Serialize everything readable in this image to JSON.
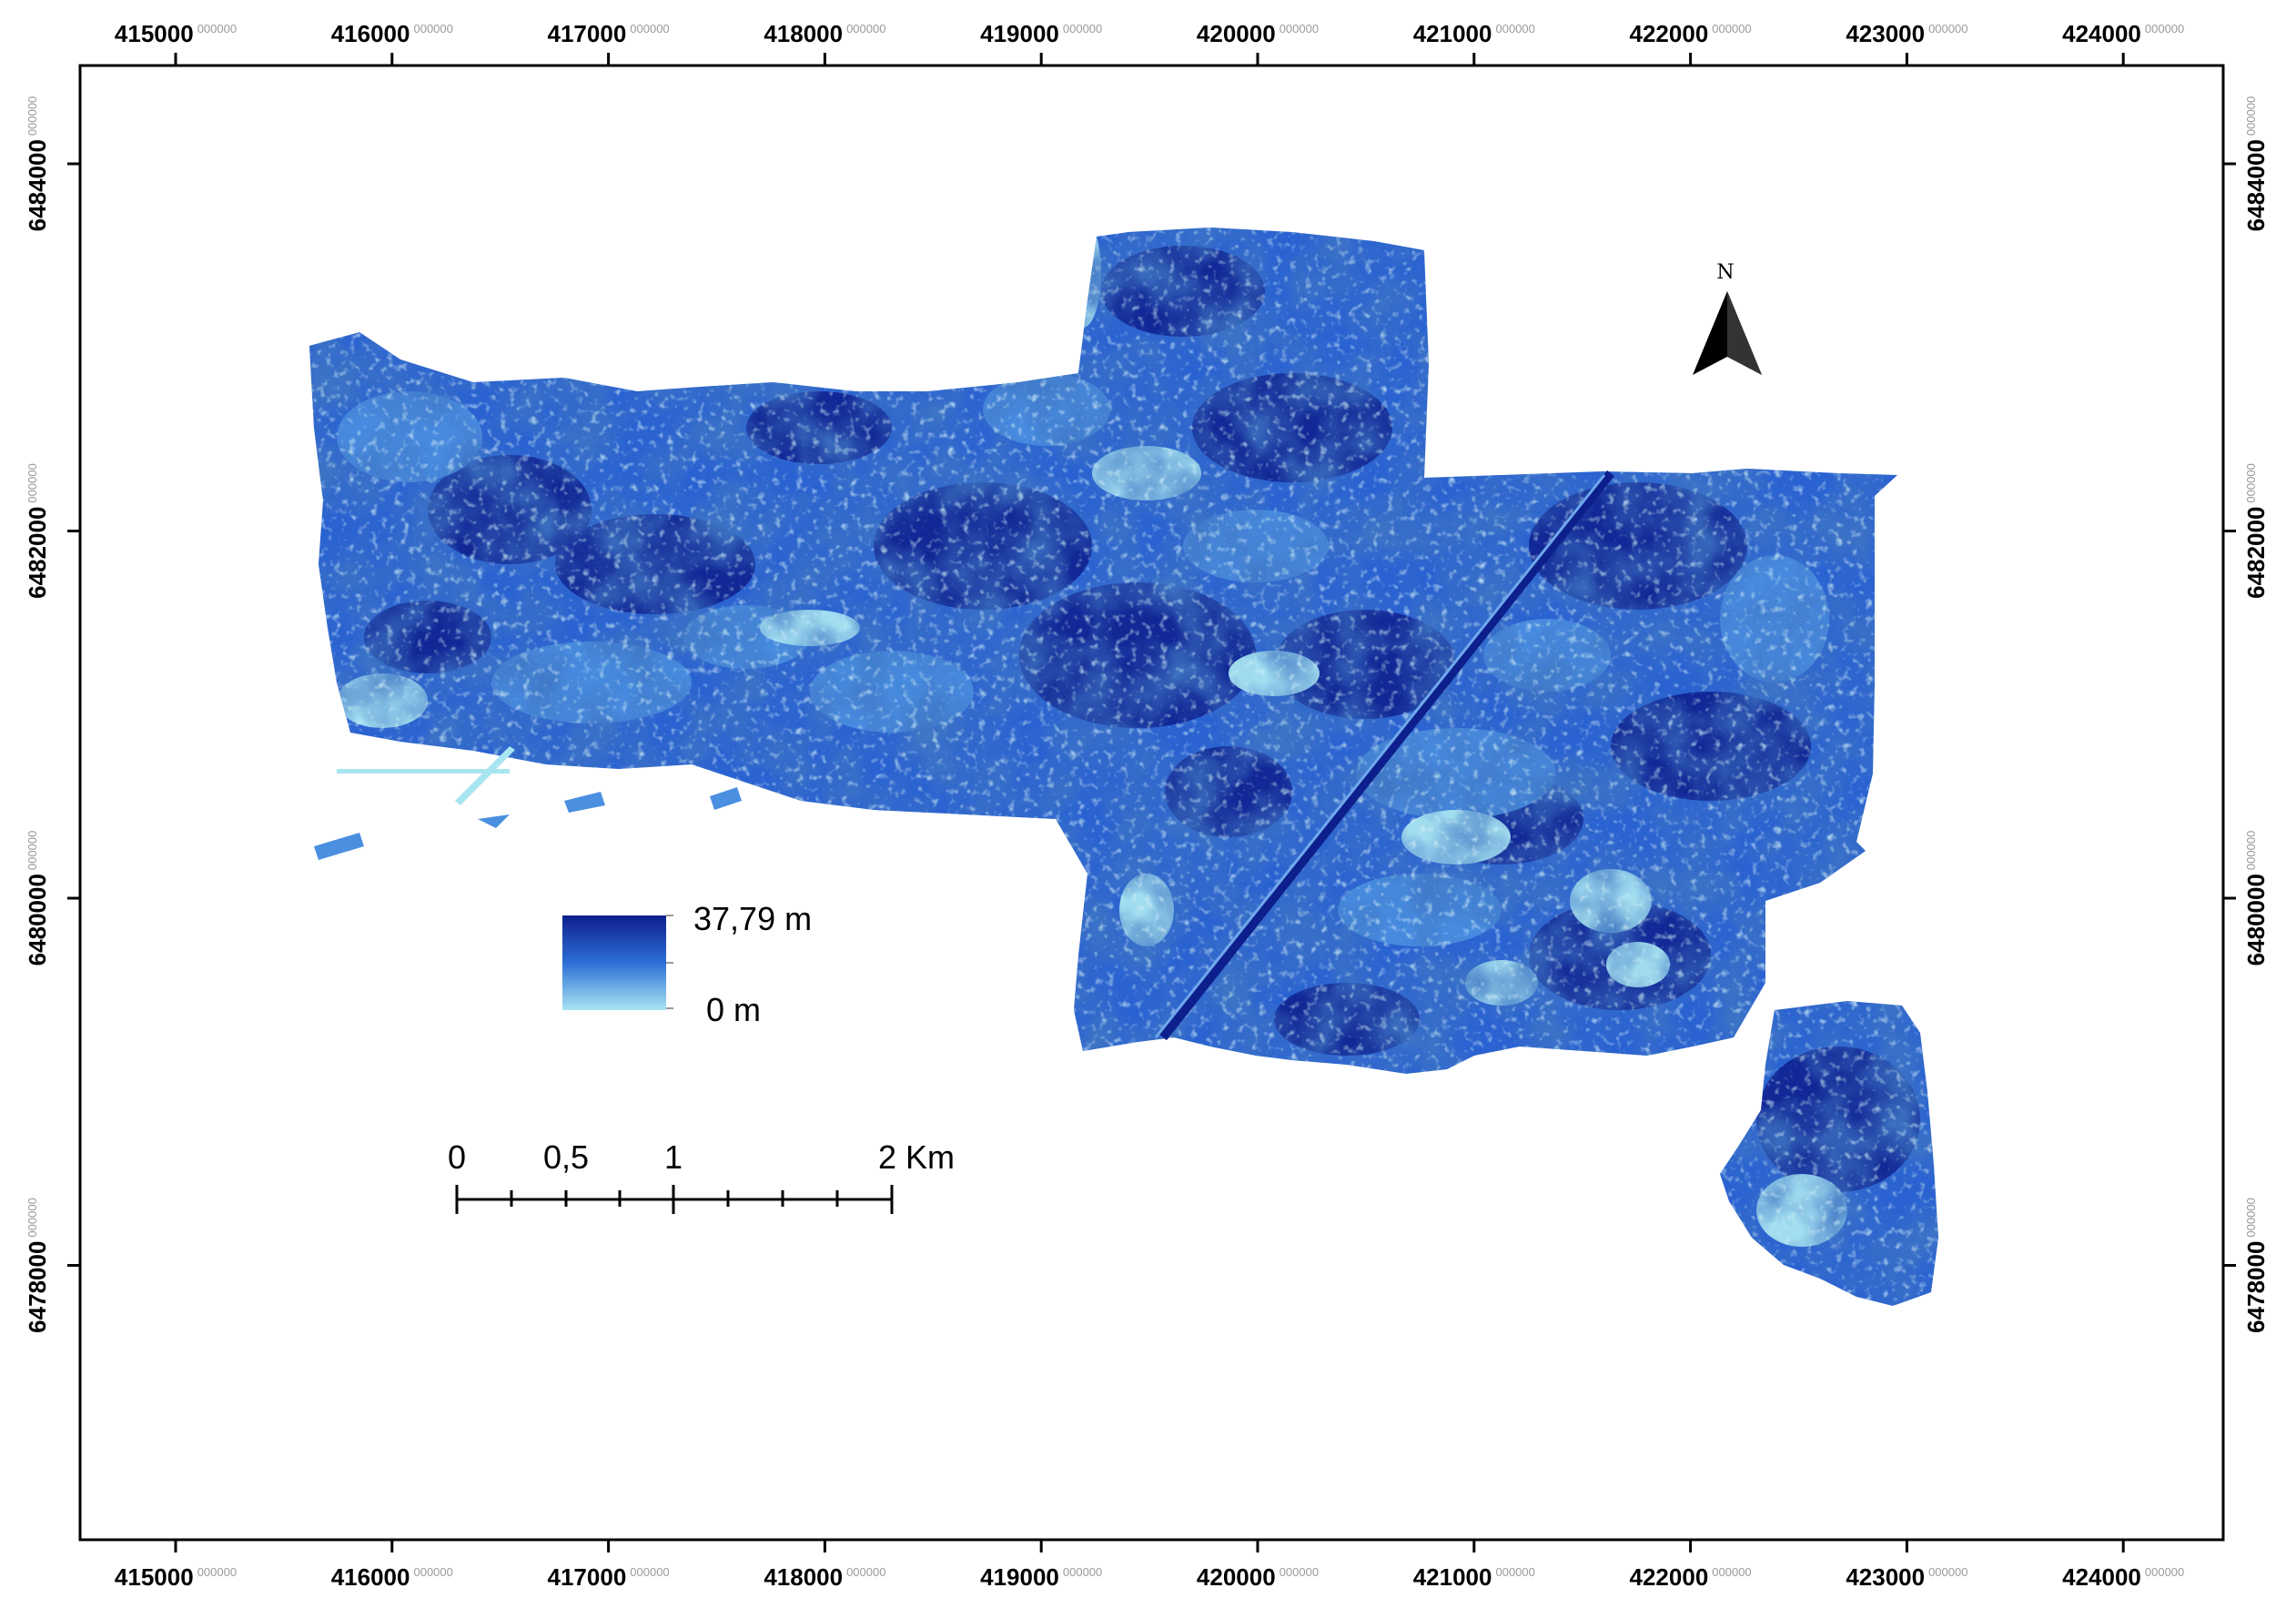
{
  "map": {
    "x_ticks": [
      {
        "main": "415000",
        "sup": "000000"
      },
      {
        "main": "416000",
        "sup": "000000"
      },
      {
        "main": "417000",
        "sup": "000000"
      },
      {
        "main": "418000",
        "sup": "000000"
      },
      {
        "main": "419000",
        "sup": "000000"
      },
      {
        "main": "420000",
        "sup": "000000"
      },
      {
        "main": "421000",
        "sup": "000000"
      },
      {
        "main": "422000",
        "sup": "000000"
      },
      {
        "main": "423000",
        "sup": "000000"
      },
      {
        "main": "424000",
        "sup": "000000"
      }
    ],
    "y_ticks": [
      {
        "main": "6484000",
        "sup": "000000"
      },
      {
        "main": "6482000",
        "sup": "000000"
      },
      {
        "main": "6480000",
        "sup": "000000"
      },
      {
        "main": "6478000",
        "sup": "000000"
      }
    ],
    "legend": {
      "max_label": "37,79 m",
      "min_label": "0 m",
      "color_high": "#0d1f8c",
      "color_mid": "#2d6fd6",
      "color_low": "#a9e4f1"
    },
    "scale_bar": {
      "labels": [
        "0",
        "0,5",
        "1",
        "2 Km"
      ]
    },
    "north_arrow": {
      "label": "N"
    },
    "colors": {
      "deep": "#0d1f8c",
      "dark": "#1a39b0",
      "mid": "#2a62d1",
      "light": "#4a8fe0",
      "pale": "#a9e4f1"
    }
  }
}
